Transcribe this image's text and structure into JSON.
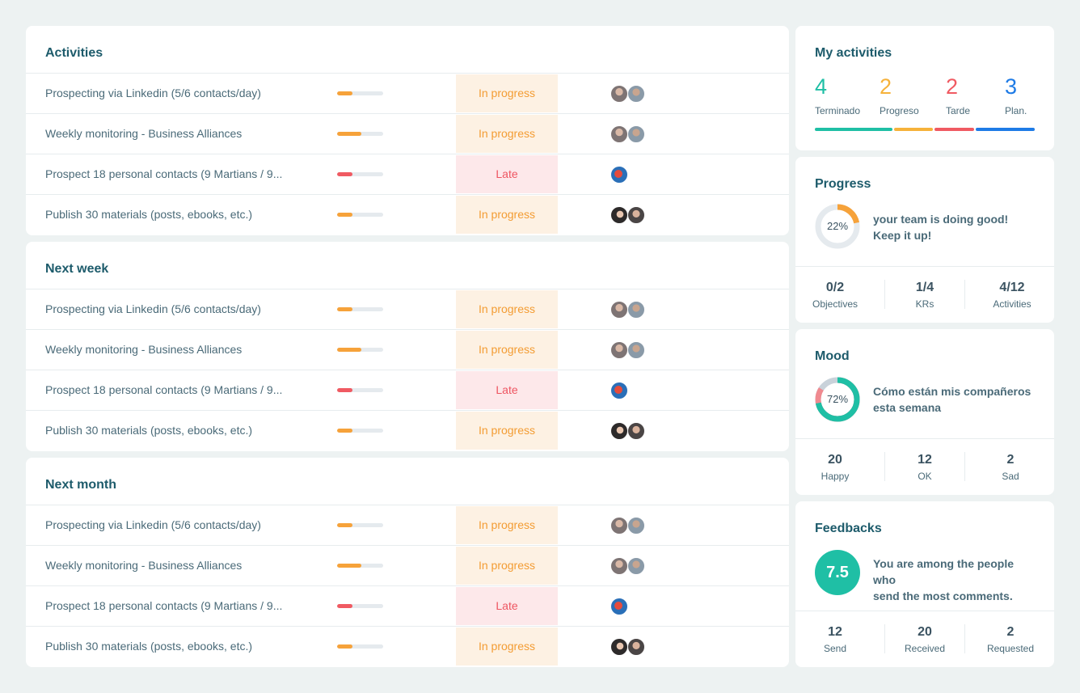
{
  "colors": {
    "teal": "#1fbfa5",
    "orange": "#f6a23a",
    "red": "#f05a62",
    "blue": "#1e7be6",
    "status_progress_bg": "#fdf1e3",
    "status_late_bg": "#fde8ea"
  },
  "sections": [
    {
      "title": "Activities",
      "rows": [
        {
          "name": "Prospecting via Linkedin (5/6 contacts/day)",
          "progress": 0.33,
          "bar_color": "#f6a23a",
          "status": "In progress",
          "status_type": "progress",
          "avatars": [
            "av-a",
            "av-b"
          ]
        },
        {
          "name": "Weekly monitoring - Business Alliances",
          "progress": 0.52,
          "bar_color": "#f6a23a",
          "status": "In progress",
          "status_type": "progress",
          "avatars": [
            "av-a",
            "av-b"
          ]
        },
        {
          "name": "Prospect 18 personal contacts (9 Martians / 9...",
          "progress": 0.33,
          "bar_color": "#f05a62",
          "status": "Late",
          "status_type": "late",
          "avatars": [
            "av-c"
          ]
        },
        {
          "name": "Publish 30 materials (posts, ebooks, etc.)",
          "progress": 0.33,
          "bar_color": "#f6a23a",
          "status": "In progress",
          "status_type": "progress",
          "avatars": [
            "av-d",
            "av-e"
          ]
        }
      ]
    },
    {
      "title": "Next week",
      "rows": [
        {
          "name": "Prospecting via Linkedin (5/6 contacts/day)",
          "progress": 0.33,
          "bar_color": "#f6a23a",
          "status": "In progress",
          "status_type": "progress",
          "avatars": [
            "av-a",
            "av-b"
          ]
        },
        {
          "name": "Weekly monitoring - Business Alliances",
          "progress": 0.52,
          "bar_color": "#f6a23a",
          "status": "In progress",
          "status_type": "progress",
          "avatars": [
            "av-a",
            "av-b"
          ]
        },
        {
          "name": "Prospect 18 personal contacts (9 Martians / 9...",
          "progress": 0.33,
          "bar_color": "#f05a62",
          "status": "Late",
          "status_type": "late",
          "avatars": [
            "av-c"
          ]
        },
        {
          "name": "Publish 30 materials (posts, ebooks, etc.)",
          "progress": 0.33,
          "bar_color": "#f6a23a",
          "status": "In progress",
          "status_type": "progress",
          "avatars": [
            "av-d",
            "av-e"
          ]
        }
      ]
    },
    {
      "title": "Next month",
      "rows": [
        {
          "name": "Prospecting via Linkedin (5/6 contacts/day)",
          "progress": 0.33,
          "bar_color": "#f6a23a",
          "status": "In progress",
          "status_type": "progress",
          "avatars": [
            "av-a",
            "av-b"
          ]
        },
        {
          "name": "Weekly monitoring - Business Alliances",
          "progress": 0.52,
          "bar_color": "#f6a23a",
          "status": "In progress",
          "status_type": "progress",
          "avatars": [
            "av-a",
            "av-b"
          ]
        },
        {
          "name": "Prospect 18 personal contacts (9 Martians / 9...",
          "progress": 0.33,
          "bar_color": "#f05a62",
          "status": "Late",
          "status_type": "late",
          "avatars": [
            "av-c"
          ]
        },
        {
          "name": "Publish 30 materials (posts, ebooks, etc.)",
          "progress": 0.33,
          "bar_color": "#f6a23a",
          "status": "In progress",
          "status_type": "progress",
          "avatars": [
            "av-d",
            "av-e"
          ]
        }
      ]
    }
  ],
  "my_activities": {
    "title": "My activities",
    "stats": [
      {
        "value": "4",
        "label": "Terminado",
        "color": "#1fbfa5"
      },
      {
        "value": "2",
        "label": "Progreso",
        "color": "#f6b23a"
      },
      {
        "value": "2",
        "label": "Tarde",
        "color": "#f05a62"
      },
      {
        "value": "3",
        "label": "Plan.",
        "color": "#1e7be6"
      }
    ]
  },
  "progress": {
    "title": "Progress",
    "percent_label": "22%",
    "percent": 0.22,
    "message_line1": "your team is doing good!",
    "message_line2": "Keep it up!",
    "stats": [
      {
        "value": "0/2",
        "label": "Objectives"
      },
      {
        "value": "1/4",
        "label": "KRs"
      },
      {
        "value": "4/12",
        "label": "Activities"
      }
    ]
  },
  "mood": {
    "title": "Mood",
    "percent_label": "72%",
    "percent": 0.72,
    "message_line1": "Cómo están mis compañeros",
    "message_line2": "esta semana",
    "stats": [
      {
        "value": "20",
        "label": "Happy"
      },
      {
        "value": "12",
        "label": "OK"
      },
      {
        "value": "2",
        "label": "Sad"
      }
    ]
  },
  "feedbacks": {
    "title": "Feedbacks",
    "score": "7.5",
    "message_line1": "You are among the people who",
    "message_line2": "send the most comments.",
    "stats": [
      {
        "value": "12",
        "label": "Send"
      },
      {
        "value": "20",
        "label": "Received"
      },
      {
        "value": "2",
        "label": "Requested"
      }
    ]
  }
}
